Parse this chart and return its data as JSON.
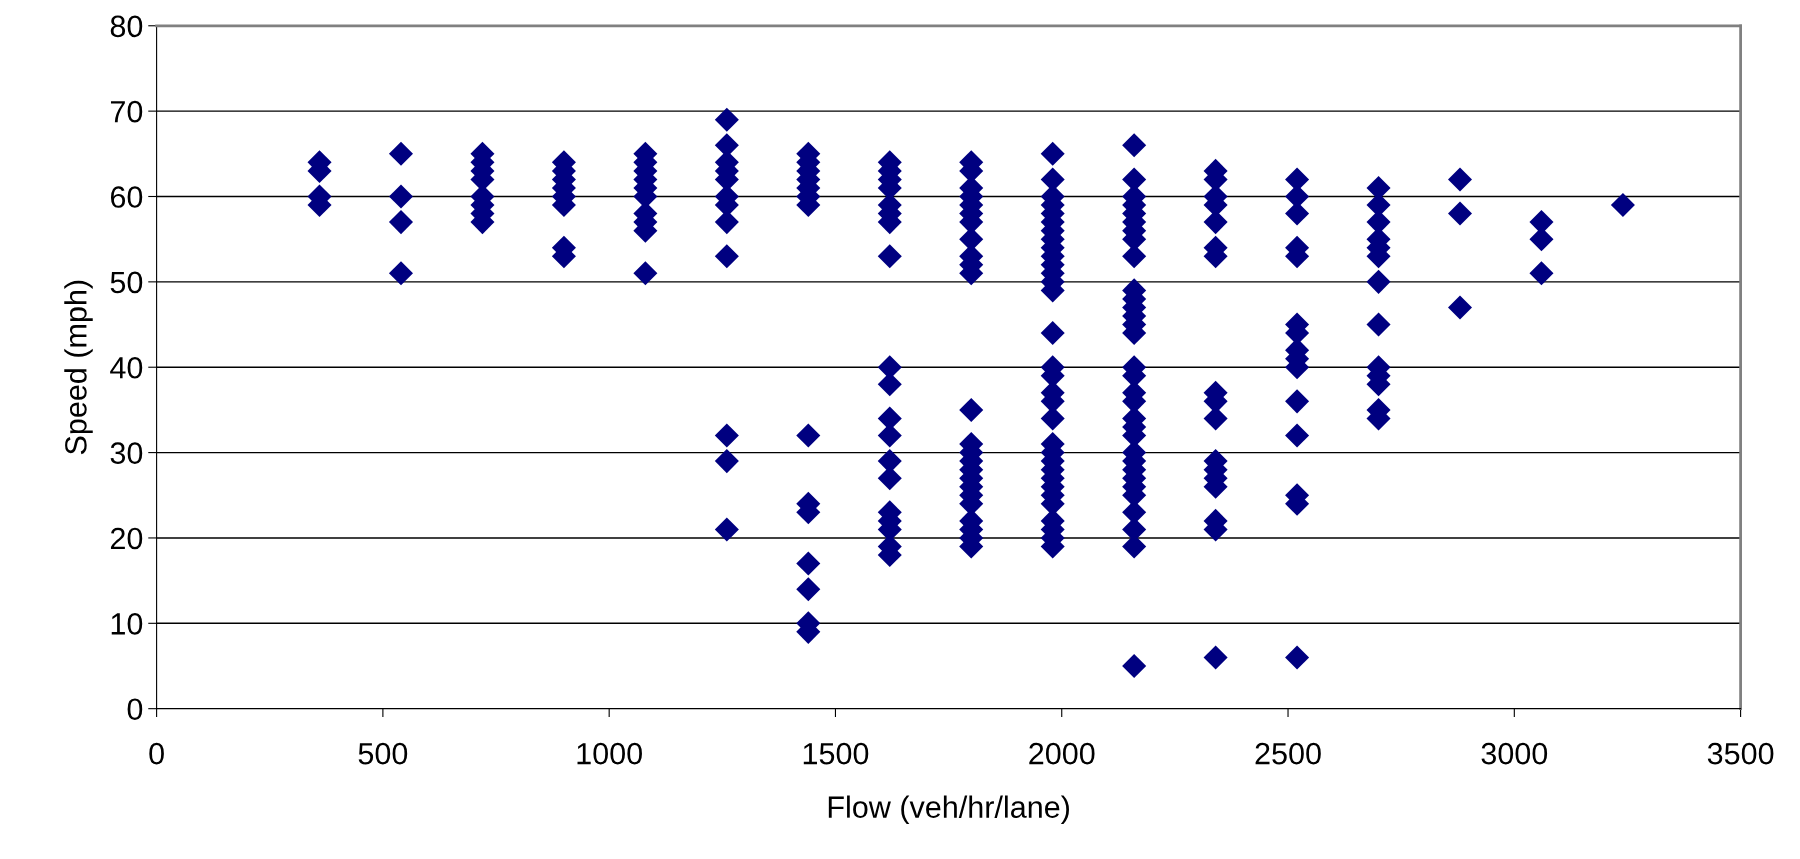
{
  "chart_data": {
    "type": "scatter",
    "xlabel": "Flow (veh/hr/lane)",
    "ylabel": "Speed (mph)",
    "marker": "diamond",
    "grid": "y",
    "legend": false,
    "xlim": [
      0,
      3500
    ],
    "xticks": [
      0,
      500,
      1000,
      1500,
      2000,
      2500,
      3000,
      3500
    ],
    "ylim": [
      0,
      80
    ],
    "yticks": [
      0,
      10,
      20,
      30,
      40,
      50,
      60,
      70,
      80
    ],
    "series": [
      {
        "color": "#000080",
        "x": [
          360,
          360,
          360,
          360,
          540,
          540,
          540,
          540,
          720,
          720,
          720,
          720,
          720,
          720,
          720,
          720,
          900,
          900,
          900,
          900,
          900,
          900,
          900,
          900,
          1080,
          1080,
          1080,
          1080,
          1080,
          1080,
          1080,
          1080,
          1080,
          1080,
          1260,
          1260,
          1260,
          1260,
          1260,
          1260,
          1260,
          1260,
          1260,
          1260,
          1260,
          1260,
          1440,
          1440,
          1440,
          1440,
          1440,
          1440,
          1440,
          1440,
          1440,
          1440,
          1440,
          1440,
          1440,
          1440,
          1620,
          1620,
          1620,
          1620,
          1620,
          1620,
          1620,
          1620,
          1620,
          1620,
          1620,
          1620,
          1620,
          1620,
          1620,
          1620,
          1620,
          1620,
          1620,
          1800,
          1800,
          1800,
          1800,
          1800,
          1800,
          1800,
          1800,
          1800,
          1800,
          1800,
          1800,
          1800,
          1800,
          1800,
          1800,
          1800,
          1800,
          1800,
          1800,
          1800,
          1800,
          1800,
          1800,
          1980,
          1980,
          1980,
          1980,
          1980,
          1980,
          1980,
          1980,
          1980,
          1980,
          1980,
          1980,
          1980,
          1980,
          1980,
          1980,
          1980,
          1980,
          1980,
          1980,
          1980,
          1980,
          1980,
          1980,
          1980,
          1980,
          1980,
          1980,
          1980,
          1980,
          1980,
          1980,
          2160,
          2160,
          2160,
          2160,
          2160,
          2160,
          2160,
          2160,
          2160,
          2160,
          2160,
          2160,
          2160,
          2160,
          2160,
          2160,
          2160,
          2160,
          2160,
          2160,
          2160,
          2160,
          2160,
          2160,
          2160,
          2160,
          2160,
          2160,
          2160,
          2160,
          2160,
          2160,
          2340,
          2340,
          2340,
          2340,
          2340,
          2340,
          2340,
          2340,
          2340,
          2340,
          2340,
          2340,
          2340,
          2340,
          2340,
          2340,
          2340,
          2520,
          2520,
          2520,
          2520,
          2520,
          2520,
          2520,
          2520,
          2520,
          2520,
          2520,
          2520,
          2520,
          2520,
          2520,
          2700,
          2700,
          2700,
          2700,
          2700,
          2700,
          2700,
          2700,
          2700,
          2700,
          2700,
          2700,
          2700,
          2880,
          2880,
          2880,
          3060,
          3060,
          3060,
          3240
        ],
        "values": [
          64,
          63,
          60,
          59,
          65,
          60,
          57,
          51,
          65,
          64,
          63,
          62,
          60,
          59,
          58,
          57,
          64,
          63,
          62,
          61,
          60,
          59,
          54,
          53,
          65,
          64,
          63,
          62,
          61,
          60,
          58,
          57,
          56,
          51,
          69,
          66,
          64,
          63,
          62,
          60,
          59,
          57,
          53,
          32,
          29,
          21,
          65,
          64,
          63,
          62,
          61,
          60,
          59,
          32,
          24,
          23,
          17,
          14,
          10,
          9,
          64,
          63,
          62,
          61,
          59,
          58,
          57,
          53,
          40,
          38,
          34,
          32,
          29,
          27,
          23,
          22,
          21,
          19,
          18,
          64,
          63,
          61,
          60,
          59,
          58,
          57,
          55,
          53,
          52,
          51,
          35,
          31,
          30,
          29,
          28,
          27,
          26,
          25,
          24,
          22,
          21,
          20,
          19,
          65,
          62,
          60,
          59,
          58,
          57,
          56,
          55,
          54,
          53,
          52,
          51,
          50,
          49,
          44,
          40,
          39,
          37,
          36,
          34,
          31,
          30,
          29,
          28,
          27,
          26,
          25,
          24,
          22,
          21,
          20,
          19,
          66,
          62,
          60,
          59,
          58,
          57,
          56,
          55,
          53,
          49,
          48,
          47,
          46,
          45,
          44,
          40,
          39,
          37,
          36,
          34,
          33,
          32,
          30,
          29,
          28,
          27,
          26,
          25,
          23,
          21,
          19,
          5,
          63,
          62,
          60,
          59,
          57,
          54,
          53,
          37,
          36,
          34,
          29,
          28,
          27,
          26,
          22,
          21,
          6,
          62,
          60,
          58,
          54,
          53,
          45,
          44,
          42,
          41,
          40,
          36,
          32,
          25,
          24,
          6,
          61,
          59,
          57,
          55,
          54,
          53,
          50,
          45,
          40,
          39,
          38,
          35,
          34,
          62,
          58,
          47,
          57,
          55,
          51,
          59
        ]
      }
    ]
  }
}
